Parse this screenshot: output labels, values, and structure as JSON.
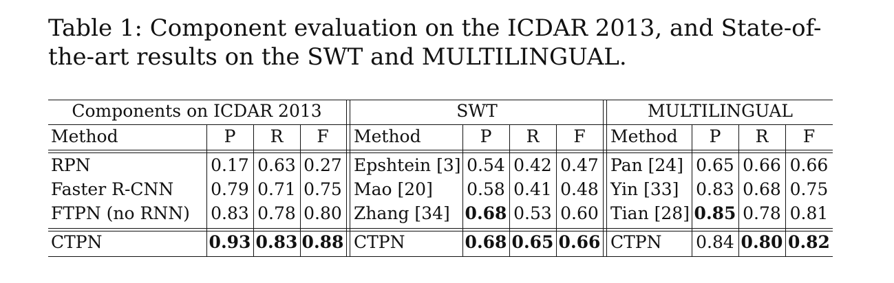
{
  "caption": "Table 1: Component evaluation on the ICDAR 2013, and State-of-the-art results on the SWT and MULTILINGUAL.",
  "groups": [
    "Components on ICDAR 2013",
    "SWT",
    "MULTILINGUAL"
  ],
  "headers": [
    "Method",
    "P",
    "R",
    "F"
  ],
  "icdar": {
    "rows": [
      [
        "RPN",
        "0.17",
        "0.63",
        "0.27"
      ],
      [
        "Faster R-CNN",
        "0.79",
        "0.71",
        "0.75"
      ],
      [
        "FTPN (no RNN)",
        "0.83",
        "0.78",
        "0.80"
      ]
    ],
    "final": [
      "CTPN",
      "0.93",
      "0.83",
      "0.88"
    ]
  },
  "swt": {
    "rows": [
      [
        "Epshtein [3]",
        "0.54",
        "0.42",
        "0.47"
      ],
      [
        "Mao [20]",
        "0.58",
        "0.41",
        "0.48"
      ],
      [
        "Zhang [34]",
        "0.68",
        "0.53",
        "0.60"
      ]
    ],
    "final": [
      "CTPN",
      "0.68",
      "0.65",
      "0.66"
    ]
  },
  "multi": {
    "rows": [
      [
        "Pan [24]",
        "0.65",
        "0.66",
        "0.66"
      ],
      [
        "Yin [33]",
        "0.83",
        "0.68",
        "0.75"
      ],
      [
        "Tian [28]",
        "0.85",
        "0.78",
        "0.81"
      ]
    ],
    "final": [
      "CTPN",
      "0.84",
      "0.80",
      "0.82"
    ]
  },
  "bold_cells": [
    "icdar.final.1",
    "icdar.final.2",
    "icdar.final.3",
    "swt.rows.2.1",
    "swt.final.1",
    "swt.final.2",
    "swt.final.3",
    "multi.rows.2.1",
    "multi.final.2",
    "multi.final.3"
  ]
}
